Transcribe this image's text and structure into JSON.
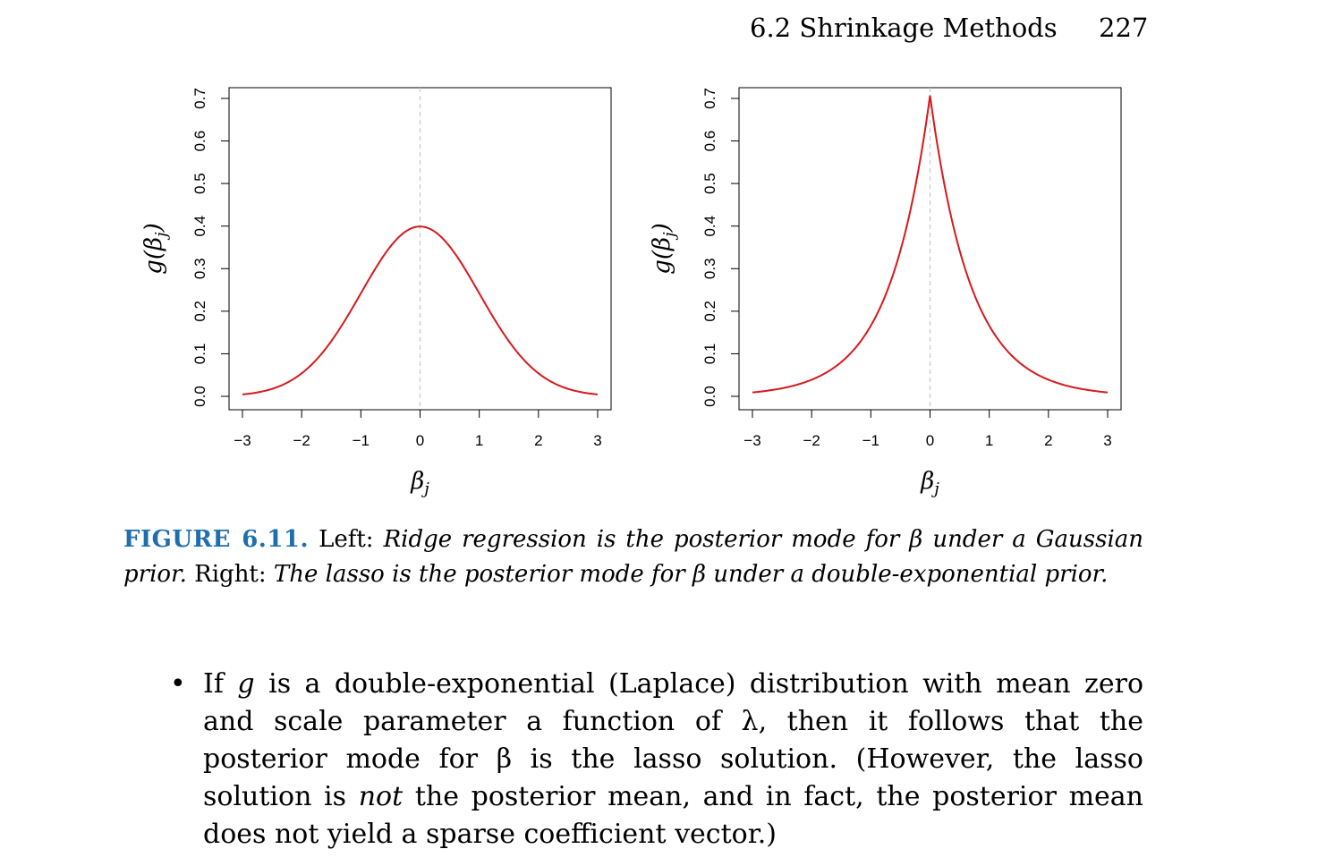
{
  "header": {
    "section": "6.2 Shrinkage Methods",
    "page_number": "227"
  },
  "colors": {
    "curve": "#d7191c",
    "caption_label": "#1f6fae",
    "dashed_line": "#c8c8c8"
  },
  "chart_data": [
    {
      "type": "line",
      "panel": "left",
      "xlabel": "βj",
      "ylabel": "g(βj)",
      "xlim": [
        -3,
        3
      ],
      "ylim": [
        0,
        0.7
      ],
      "x_ticks": [
        "−3",
        "−2",
        "−1",
        "0",
        "1",
        "2",
        "3"
      ],
      "y_ticks": [
        "0.0",
        "0.1",
        "0.2",
        "0.3",
        "0.4",
        "0.5",
        "0.6",
        "0.7"
      ],
      "reference_line": {
        "x": 0,
        "style": "dashed"
      },
      "series": [
        {
          "x": [
            -3,
            -2.5,
            -2,
            -1.5,
            -1,
            -0.5,
            0,
            0.5,
            1,
            1.5,
            2,
            2.5,
            3
          ],
          "y": [
            0.004,
            0.018,
            0.054,
            0.13,
            0.242,
            0.352,
            0.399,
            0.352,
            0.242,
            0.13,
            0.054,
            0.018,
            0.004
          ]
        }
      ]
    },
    {
      "type": "line",
      "panel": "right",
      "xlabel": "βj",
      "ylabel": "g(βj)",
      "xlim": [
        -3,
        3
      ],
      "ylim": [
        0,
        0.7
      ],
      "x_ticks": [
        "−3",
        "−2",
        "−1",
        "0",
        "1",
        "2",
        "3"
      ],
      "y_ticks": [
        "0.0",
        "0.1",
        "0.2",
        "0.3",
        "0.4",
        "0.5",
        "0.6",
        "0.7"
      ],
      "reference_line": {
        "x": 0,
        "style": "dashed"
      },
      "series": [
        {
          "x": [
            -3,
            -2.5,
            -2,
            -1.5,
            -1,
            -0.5,
            0,
            0.5,
            1,
            1.5,
            2,
            2.5,
            3
          ],
          "y": [
            0.01,
            0.021,
            0.041,
            0.082,
            0.166,
            0.342,
            0.707,
            0.342,
            0.166,
            0.082,
            0.041,
            0.021,
            0.01
          ]
        }
      ]
    }
  ],
  "caption": {
    "label": "FIGURE 6.11.",
    "left_word": "Left:",
    "left_text": "Ridge regression is the posterior mode for β under a Gaussian prior.",
    "right_word": "Right:",
    "right_text": "The lasso is the posterior mode for β under a double-exponential prior."
  },
  "bullet": {
    "symbol": "•",
    "text_1": "If",
    "var_g": "g",
    "text_2": "is a double-exponential (Laplace) distribution with mean zero and scale parameter a function of λ, then it follows that the posterior mode for β is the lasso solution. (However, the lasso solution is",
    "emph": "not",
    "text_3": "the posterior mean, and in fact, the posterior mean does not yield a sparse coefficient vector.)"
  }
}
